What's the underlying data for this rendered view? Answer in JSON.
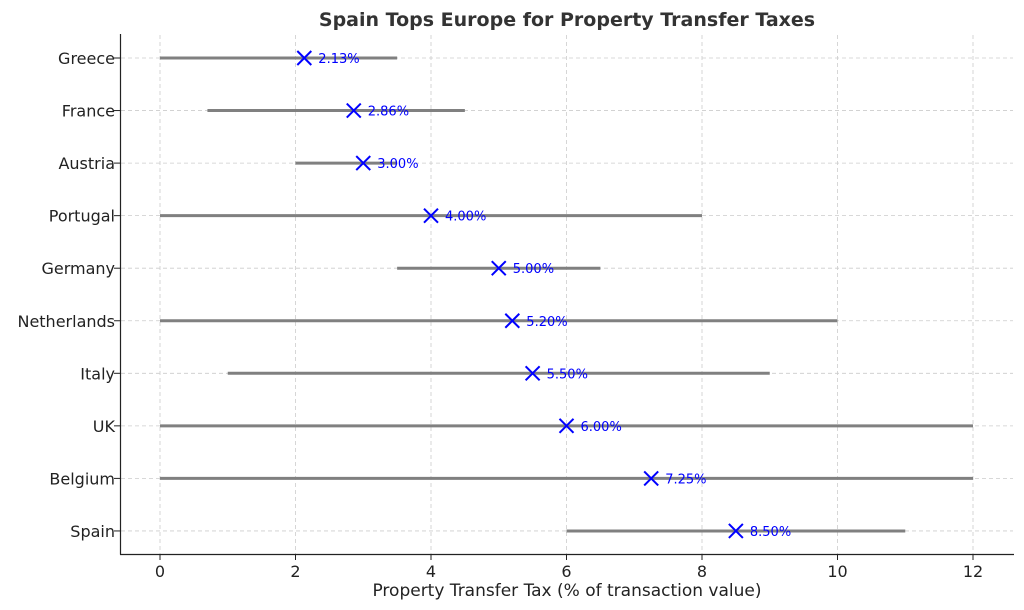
{
  "chart_data": {
    "type": "scatter",
    "title": "Spain Tops Europe for Property Transfer Taxes",
    "xlabel": "Property Transfer Tax (% of transaction value)",
    "ylabel": "",
    "xlim": [
      -0.6,
      12.6
    ],
    "xticks": [
      0,
      2,
      4,
      6,
      8,
      10,
      12
    ],
    "grid": true,
    "categories": [
      "Greece",
      "France",
      "Austria",
      "Portugal",
      "Germany",
      "Netherlands",
      "Italy",
      "UK",
      "Belgium",
      "Spain"
    ],
    "values": [
      2.13,
      2.86,
      3.0,
      4.0,
      5.0,
      5.2,
      5.5,
      6.0,
      7.25,
      8.5
    ],
    "labels": [
      "2.13%",
      "2.86%",
      "3.00%",
      "4.00%",
      "5.00%",
      "5.20%",
      "5.50%",
      "6.00%",
      "7.25%",
      "8.50%"
    ],
    "ranges": [
      [
        0,
        3.5
      ],
      [
        0.7,
        4.5
      ],
      [
        2,
        3.5
      ],
      [
        0,
        8
      ],
      [
        3.5,
        6.5
      ],
      [
        0,
        10
      ],
      [
        1,
        9
      ],
      [
        0,
        12
      ],
      [
        0,
        12
      ],
      [
        6,
        11
      ]
    ],
    "colors": {
      "marker": "#0000ff",
      "range": "#808080",
      "grid": "#cccccc"
    }
  }
}
